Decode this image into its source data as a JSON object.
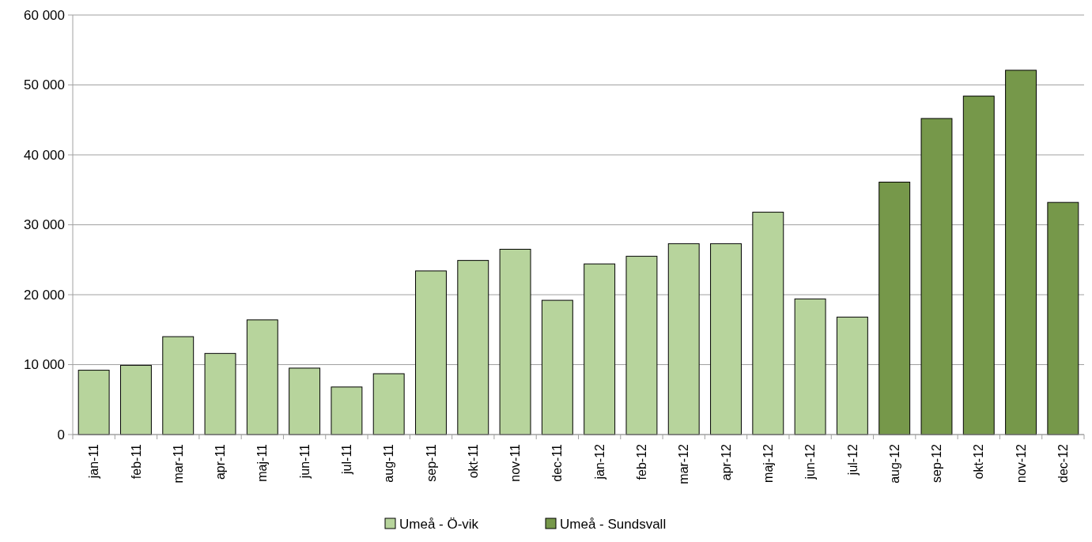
{
  "chart_data": {
    "type": "bar",
    "stacked": true,
    "categories": [
      "jan-11",
      "feb-11",
      "mar-11",
      "apr-11",
      "maj-11",
      "jun-11",
      "jul-11",
      "aug-11",
      "sep-11",
      "okt-11",
      "nov-11",
      "dec-11",
      "jan-12",
      "feb-12",
      "mar-12",
      "apr-12",
      "maj-12",
      "jun-12",
      "jul-12",
      "aug-12",
      "sep-12",
      "okt-12",
      "nov-12",
      "dec-12"
    ],
    "series": [
      {
        "name": "Umeå - Ö-vik",
        "color": "#b7d49c",
        "values": [
          9200,
          9900,
          14000,
          11600,
          16400,
          9500,
          6800,
          8700,
          23400,
          24900,
          26500,
          19200,
          24400,
          25500,
          27300,
          27300,
          31800,
          19400,
          16800,
          null,
          null,
          null,
          null,
          null
        ]
      },
      {
        "name": "Umeå - Sundsvall",
        "color": "#76984a",
        "values": [
          null,
          null,
          null,
          null,
          null,
          null,
          null,
          null,
          null,
          null,
          null,
          null,
          null,
          null,
          null,
          null,
          null,
          null,
          null,
          36100,
          45200,
          48400,
          52100,
          33200
        ]
      }
    ],
    "ylim": [
      0,
      60000
    ],
    "yticks": [
      {
        "value": 0,
        "label": "0"
      },
      {
        "value": 10000,
        "label": "10 000"
      },
      {
        "value": 20000,
        "label": "20 000"
      },
      {
        "value": 30000,
        "label": "30 000"
      },
      {
        "value": 40000,
        "label": "40 000"
      },
      {
        "value": 50000,
        "label": "50 000"
      },
      {
        "value": 60000,
        "label": "60 000"
      }
    ],
    "grid": "y",
    "legend": "bottom"
  }
}
